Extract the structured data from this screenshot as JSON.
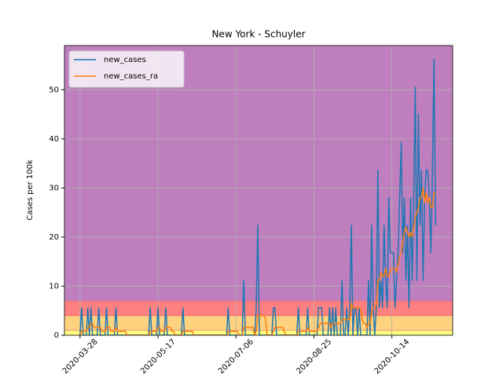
{
  "chart_data": {
    "type": "line",
    "title": "New York - Schuyler",
    "y_label": "Cases per 100k",
    "x": [
      "2020-03-28",
      "2020-03-29",
      "2020-03-30",
      "2020-03-31",
      "2020-04-01",
      "2020-04-02",
      "2020-04-03",
      "2020-04-04",
      "2020-04-05",
      "2020-04-06",
      "2020-04-07",
      "2020-04-08",
      "2020-04-09",
      "2020-04-10",
      "2020-04-11",
      "2020-04-12",
      "2020-04-13",
      "2020-04-14",
      "2020-04-15",
      "2020-04-16",
      "2020-04-17",
      "2020-04-18",
      "2020-04-19",
      "2020-04-20",
      "2020-04-21",
      "2020-04-22",
      "2020-04-23",
      "2020-04-24",
      "2020-04-25",
      "2020-04-26",
      "2020-04-27",
      "2020-04-28",
      "2020-04-29",
      "2020-04-30",
      "2020-05-01",
      "2020-05-02",
      "2020-05-03",
      "2020-05-04",
      "2020-05-05",
      "2020-05-06",
      "2020-05-07",
      "2020-05-08",
      "2020-05-09",
      "2020-05-10",
      "2020-05-11",
      "2020-05-12",
      "2020-05-13",
      "2020-05-14",
      "2020-05-15",
      "2020-05-16",
      "2020-05-17",
      "2020-05-18",
      "2020-05-19",
      "2020-05-20",
      "2020-05-21",
      "2020-05-22",
      "2020-05-23",
      "2020-05-24",
      "2020-05-25",
      "2020-05-26",
      "2020-05-27",
      "2020-05-28",
      "2020-05-29",
      "2020-05-30",
      "2020-05-31",
      "2020-06-01",
      "2020-06-02",
      "2020-06-03",
      "2020-06-04",
      "2020-06-05",
      "2020-06-06",
      "2020-06-07",
      "2020-06-08",
      "2020-06-09",
      "2020-06-10",
      "2020-06-11",
      "2020-06-12",
      "2020-06-13",
      "2020-06-14",
      "2020-06-15",
      "2020-06-16",
      "2020-06-17",
      "2020-06-18",
      "2020-06-19",
      "2020-06-20",
      "2020-06-21",
      "2020-06-22",
      "2020-06-23",
      "2020-06-24",
      "2020-06-25",
      "2020-06-26",
      "2020-06-27",
      "2020-06-28",
      "2020-06-29",
      "2020-06-30",
      "2020-07-01",
      "2020-07-02",
      "2020-07-03",
      "2020-07-04",
      "2020-07-05",
      "2020-07-06",
      "2020-07-07",
      "2020-07-08",
      "2020-07-09",
      "2020-07-10",
      "2020-07-11",
      "2020-07-12",
      "2020-07-13",
      "2020-07-14",
      "2020-07-15",
      "2020-07-16",
      "2020-07-17",
      "2020-07-18",
      "2020-07-19",
      "2020-07-20",
      "2020-07-21",
      "2020-07-22",
      "2020-07-23",
      "2020-07-24",
      "2020-07-25",
      "2020-07-26",
      "2020-07-27",
      "2020-07-28",
      "2020-07-29",
      "2020-07-30",
      "2020-07-31",
      "2020-08-01",
      "2020-08-02",
      "2020-08-03",
      "2020-08-04",
      "2020-08-05",
      "2020-08-06",
      "2020-08-07",
      "2020-08-08",
      "2020-08-09",
      "2020-08-10",
      "2020-08-11",
      "2020-08-12",
      "2020-08-13",
      "2020-08-14",
      "2020-08-15",
      "2020-08-16",
      "2020-08-17",
      "2020-08-18",
      "2020-08-19",
      "2020-08-20",
      "2020-08-21",
      "2020-08-22",
      "2020-08-23",
      "2020-08-24",
      "2020-08-25",
      "2020-08-26",
      "2020-08-27",
      "2020-08-28",
      "2020-08-29",
      "2020-08-30",
      "2020-08-31",
      "2020-09-01",
      "2020-09-02",
      "2020-09-03",
      "2020-09-04",
      "2020-09-05",
      "2020-09-06",
      "2020-09-07",
      "2020-09-08",
      "2020-09-09",
      "2020-09-10",
      "2020-09-11",
      "2020-09-12",
      "2020-09-13",
      "2020-09-14",
      "2020-09-15",
      "2020-09-16",
      "2020-09-17",
      "2020-09-18",
      "2020-09-19",
      "2020-09-20",
      "2020-09-21",
      "2020-09-22",
      "2020-09-23",
      "2020-09-24",
      "2020-09-25",
      "2020-09-26",
      "2020-09-27",
      "2020-09-28",
      "2020-09-29",
      "2020-09-30",
      "2020-10-01",
      "2020-10-02",
      "2020-10-03",
      "2020-10-04",
      "2020-10-05",
      "2020-10-06",
      "2020-10-07",
      "2020-10-08",
      "2020-10-09",
      "2020-10-10",
      "2020-10-11",
      "2020-10-12",
      "2020-10-13",
      "2020-10-14",
      "2020-10-15",
      "2020-10-16",
      "2020-10-17",
      "2020-10-18",
      "2020-10-19",
      "2020-10-20",
      "2020-10-21",
      "2020-10-22",
      "2020-10-23",
      "2020-10-24",
      "2020-10-25",
      "2020-10-26",
      "2020-10-27",
      "2020-10-28",
      "2020-10-29",
      "2020-10-30",
      "2020-10-31",
      "2020-11-01",
      "2020-11-02",
      "2020-11-03",
      "2020-11-04",
      "2020-11-05",
      "2020-11-06",
      "2020-11-07",
      "2020-11-08",
      "2020-11-09",
      "2020-11-10",
      "2020-11-11"
    ],
    "series": [
      {
        "name": "new_cases",
        "color": "#1f77b4",
        "values": [
          0,
          5.6,
          0,
          0,
          0,
          5.6,
          0,
          5.6,
          0,
          0,
          0,
          0,
          5.6,
          0,
          0,
          0,
          0,
          5.6,
          0,
          0,
          0,
          0,
          0,
          5.6,
          0,
          0,
          0,
          0,
          0,
          0,
          0,
          0,
          0,
          0,
          0,
          0,
          0,
          0,
          0,
          0,
          0,
          0,
          0,
          0,
          0,
          5.6,
          0,
          0,
          0,
          0,
          5.6,
          0,
          0,
          0,
          0,
          5.6,
          0,
          0,
          0,
          0,
          0,
          0,
          0,
          0,
          0,
          0,
          5.6,
          0,
          0,
          0,
          0,
          0,
          0,
          0,
          0,
          0,
          0,
          0,
          0,
          0,
          0,
          0,
          0,
          0,
          0,
          0,
          0,
          0,
          0,
          0,
          0,
          0,
          0,
          0,
          0,
          5.6,
          0,
          0,
          0,
          0,
          0,
          0,
          0,
          0,
          0,
          11.2,
          0,
          0,
          0,
          0,
          0,
          0,
          0,
          5.6,
          22.4,
          0,
          0,
          0,
          0,
          0,
          0,
          0,
          0,
          0,
          5.6,
          5.6,
          0,
          0,
          0,
          0,
          0,
          0,
          0,
          0,
          0,
          0,
          0,
          0,
          0,
          0,
          5.6,
          0,
          0,
          0,
          0,
          0,
          5.6,
          0,
          0,
          0,
          0,
          0,
          0,
          5.6,
          5.6,
          5.6,
          0,
          0,
          0,
          0,
          5.6,
          0,
          5.6,
          0,
          5.6,
          0,
          0,
          0,
          11.2,
          0,
          0,
          5.6,
          0,
          5.6,
          22.4,
          0,
          5.6,
          5.6,
          0,
          5.6,
          0,
          0,
          0,
          0,
          0,
          11.2,
          0,
          22.4,
          5.6,
          0,
          5.6,
          33.6,
          5.6,
          11.2,
          5.6,
          22.4,
          11.2,
          5.6,
          28,
          16.8,
          16.8,
          16.8,
          5.6,
          11.2,
          16.8,
          28,
          39.3,
          16.8,
          28,
          11.2,
          22.4,
          5.6,
          28,
          11.2,
          28,
          50.5,
          11.2,
          45,
          22.4,
          33.6,
          11.2,
          28,
          33.6,
          33.6,
          28,
          16.8,
          33.6,
          56.2,
          22.4
        ]
      },
      {
        "name": "new_cases_ra",
        "color": "#ff7f0e",
        "values": [
          0,
          0.8,
          0.8,
          0.8,
          0.8,
          1.6,
          1.6,
          2.4,
          2.4,
          1.6,
          1.6,
          1.6,
          1.6,
          1.6,
          0.8,
          0.8,
          0.8,
          1.6,
          1.6,
          1.6,
          0.8,
          0.8,
          0.8,
          1.6,
          0.8,
          0.8,
          0.8,
          0.8,
          0.8,
          0.8,
          0,
          0,
          0,
          0,
          0,
          0,
          0,
          0,
          0,
          0,
          0,
          0,
          0,
          0,
          0,
          0.8,
          0.8,
          0.8,
          0.8,
          0.8,
          1.6,
          1.6,
          0.8,
          0.8,
          0.8,
          1.6,
          1.6,
          1.6,
          1.6,
          0.8,
          0.8,
          0,
          0,
          0,
          0,
          0,
          0.8,
          0.8,
          0.8,
          0.8,
          0.8,
          0.8,
          0.8,
          0,
          0,
          0,
          0,
          0,
          0,
          0,
          0,
          0,
          0,
          0,
          0,
          0,
          0,
          0,
          0,
          0,
          0,
          0,
          0,
          0,
          0,
          0.8,
          0.8,
          0.8,
          0.8,
          0.8,
          0.8,
          0.8,
          0,
          0,
          0,
          1.6,
          1.6,
          1.6,
          1.6,
          1.6,
          1.6,
          1.6,
          0,
          0.8,
          4,
          4,
          4,
          4,
          4,
          3.2,
          0,
          0,
          0,
          0,
          0.8,
          1.6,
          1.6,
          1.6,
          1.6,
          1.6,
          1.6,
          0.8,
          0,
          0,
          0,
          0,
          0,
          0,
          0,
          0,
          0.8,
          0.8,
          0.8,
          0.8,
          0.8,
          0.8,
          1.6,
          0.8,
          0.8,
          0.8,
          0.8,
          0.8,
          0.8,
          1.6,
          2.4,
          2.4,
          2.4,
          2.4,
          2.4,
          2.4,
          2.4,
          1.6,
          2.4,
          2.4,
          2.4,
          2.4,
          2.4,
          2.4,
          3.2,
          3.2,
          3.2,
          3.2,
          3.2,
          3.2,
          6.4,
          5.6,
          5.6,
          5.6,
          5.6,
          5.6,
          5.6,
          3.2,
          2.4,
          2.4,
          1.6,
          2.4,
          2.4,
          4.8,
          5.6,
          5.6,
          6.4,
          11.2,
          11.2,
          12.8,
          12,
          12,
          13.6,
          12,
          12,
          13,
          13.6,
          13.6,
          13.6,
          12.8,
          14.4,
          16,
          17,
          19,
          21,
          22,
          21,
          20,
          21,
          20,
          22,
          24,
          25,
          26,
          28,
          28,
          30,
          27,
          29,
          27,
          28,
          26,
          26,
          29,
          29
        ]
      }
    ],
    "bands": [
      {
        "from": 0,
        "to": 1,
        "color": "#ffff80"
      },
      {
        "from": 1,
        "to": 4,
        "color": "#ffd280"
      },
      {
        "from": 4,
        "to": 7,
        "color": "#ff8080"
      },
      {
        "from": 7,
        "color": "#bf7fbf"
      }
    ],
    "xlim": [
      "2020-03-18",
      "2020-11-22"
    ],
    "xticks": [
      "2020-03-28",
      "2020-05-17",
      "2020-07-06",
      "2020-08-25",
      "2020-10-14"
    ],
    "ylim": [
      0,
      59
    ],
    "yticks": [
      0,
      10,
      20,
      30,
      40,
      50
    ],
    "grid": true,
    "legend": "upper-left"
  }
}
